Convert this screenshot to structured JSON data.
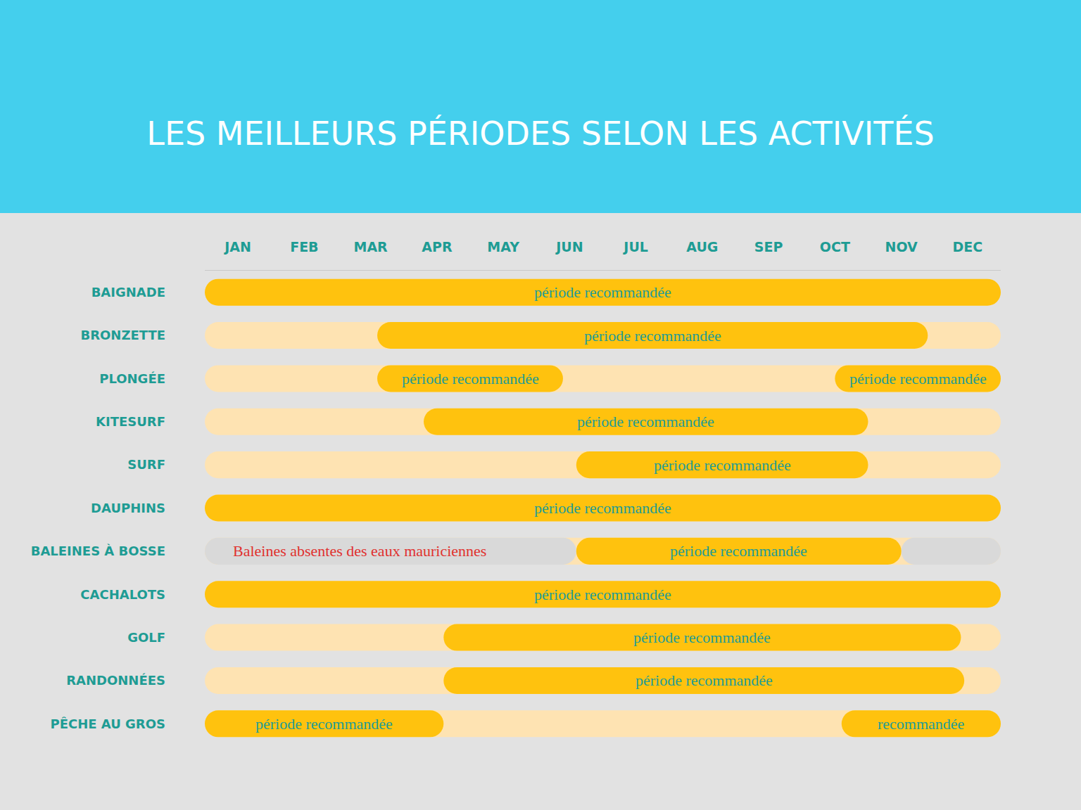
{
  "chart_data": {
    "type": "timeline",
    "title": "LES MEILLEURS PÉRIODES SELON LES ACTIVITÉS",
    "color": "#ffc20e",
    "grid": false,
    "xlim": [
      0,
      12
    ],
    "xticks": [
      {
        "value": 0.5,
        "label": "JAN"
      },
      {
        "value": 1.5,
        "label": "FEB"
      },
      {
        "value": 2.5,
        "label": "MAR"
      },
      {
        "value": 3.5,
        "label": "APR"
      },
      {
        "value": 4.5,
        "label": "MAY"
      },
      {
        "value": 5.5,
        "label": "JUN"
      },
      {
        "value": 6.5,
        "label": "JUL"
      },
      {
        "value": 7.5,
        "label": "AUG"
      },
      {
        "value": 8.5,
        "label": "SEP"
      },
      {
        "value": 9.5,
        "label": "OCT"
      },
      {
        "value": 10.5,
        "label": "NOV"
      },
      {
        "value": 11.5,
        "label": "DEC"
      }
    ],
    "rows": [
      {
        "name": "BAIGNADE",
        "periods": [
          {
            "start": 0,
            "end": 12,
            "label": "période recommandée"
          }
        ]
      },
      {
        "name": "BRONZETTE",
        "periods": [
          {
            "start": 2.6,
            "end": 10.9,
            "label": "période recommandée"
          }
        ]
      },
      {
        "name": "PLONGÉE",
        "periods": [
          {
            "start": 2.6,
            "end": 5.4,
            "label": "période recommandée"
          },
          {
            "start": 9.5,
            "end": 12,
            "label": "période recommandée"
          }
        ]
      },
      {
        "name": "KITESURF",
        "periods": [
          {
            "start": 3.3,
            "end": 10.0,
            "label": "période recommandée"
          }
        ]
      },
      {
        "name": "SURF",
        "periods": [
          {
            "start": 5.6,
            "end": 10.0,
            "label": "période recommandée"
          }
        ]
      },
      {
        "name": "DAUPHINS",
        "periods": [
          {
            "start": 0,
            "end": 12,
            "label": "période recommandée"
          }
        ]
      },
      {
        "name": "BALEINES À BOSSE",
        "periods": [
          {
            "start": 5.6,
            "end": 10.5,
            "label": "période recommandée"
          }
        ],
        "absent_periods": [
          {
            "start": 0,
            "end": 5.6,
            "label": "Baleines absentes des eaux mauriciennes"
          },
          {
            "start": 10.5,
            "end": 12
          }
        ]
      },
      {
        "name": "CACHALOTS",
        "periods": [
          {
            "start": 0,
            "end": 12,
            "label": "période recommandée"
          }
        ]
      },
      {
        "name": "GOLF",
        "periods": [
          {
            "start": 3.6,
            "end": 11.4,
            "label": "période recommandée"
          }
        ]
      },
      {
        "name": "RANDONNÉES",
        "periods": [
          {
            "start": 3.6,
            "end": 11.45,
            "label": "période recommandée"
          }
        ]
      },
      {
        "name": "PÊCHE AU GROS",
        "periods": [
          {
            "start": 0,
            "end": 3.6,
            "label": "période recommandée"
          },
          {
            "start": 9.6,
            "end": 12,
            "label": "recommandée"
          }
        ]
      }
    ]
  }
}
